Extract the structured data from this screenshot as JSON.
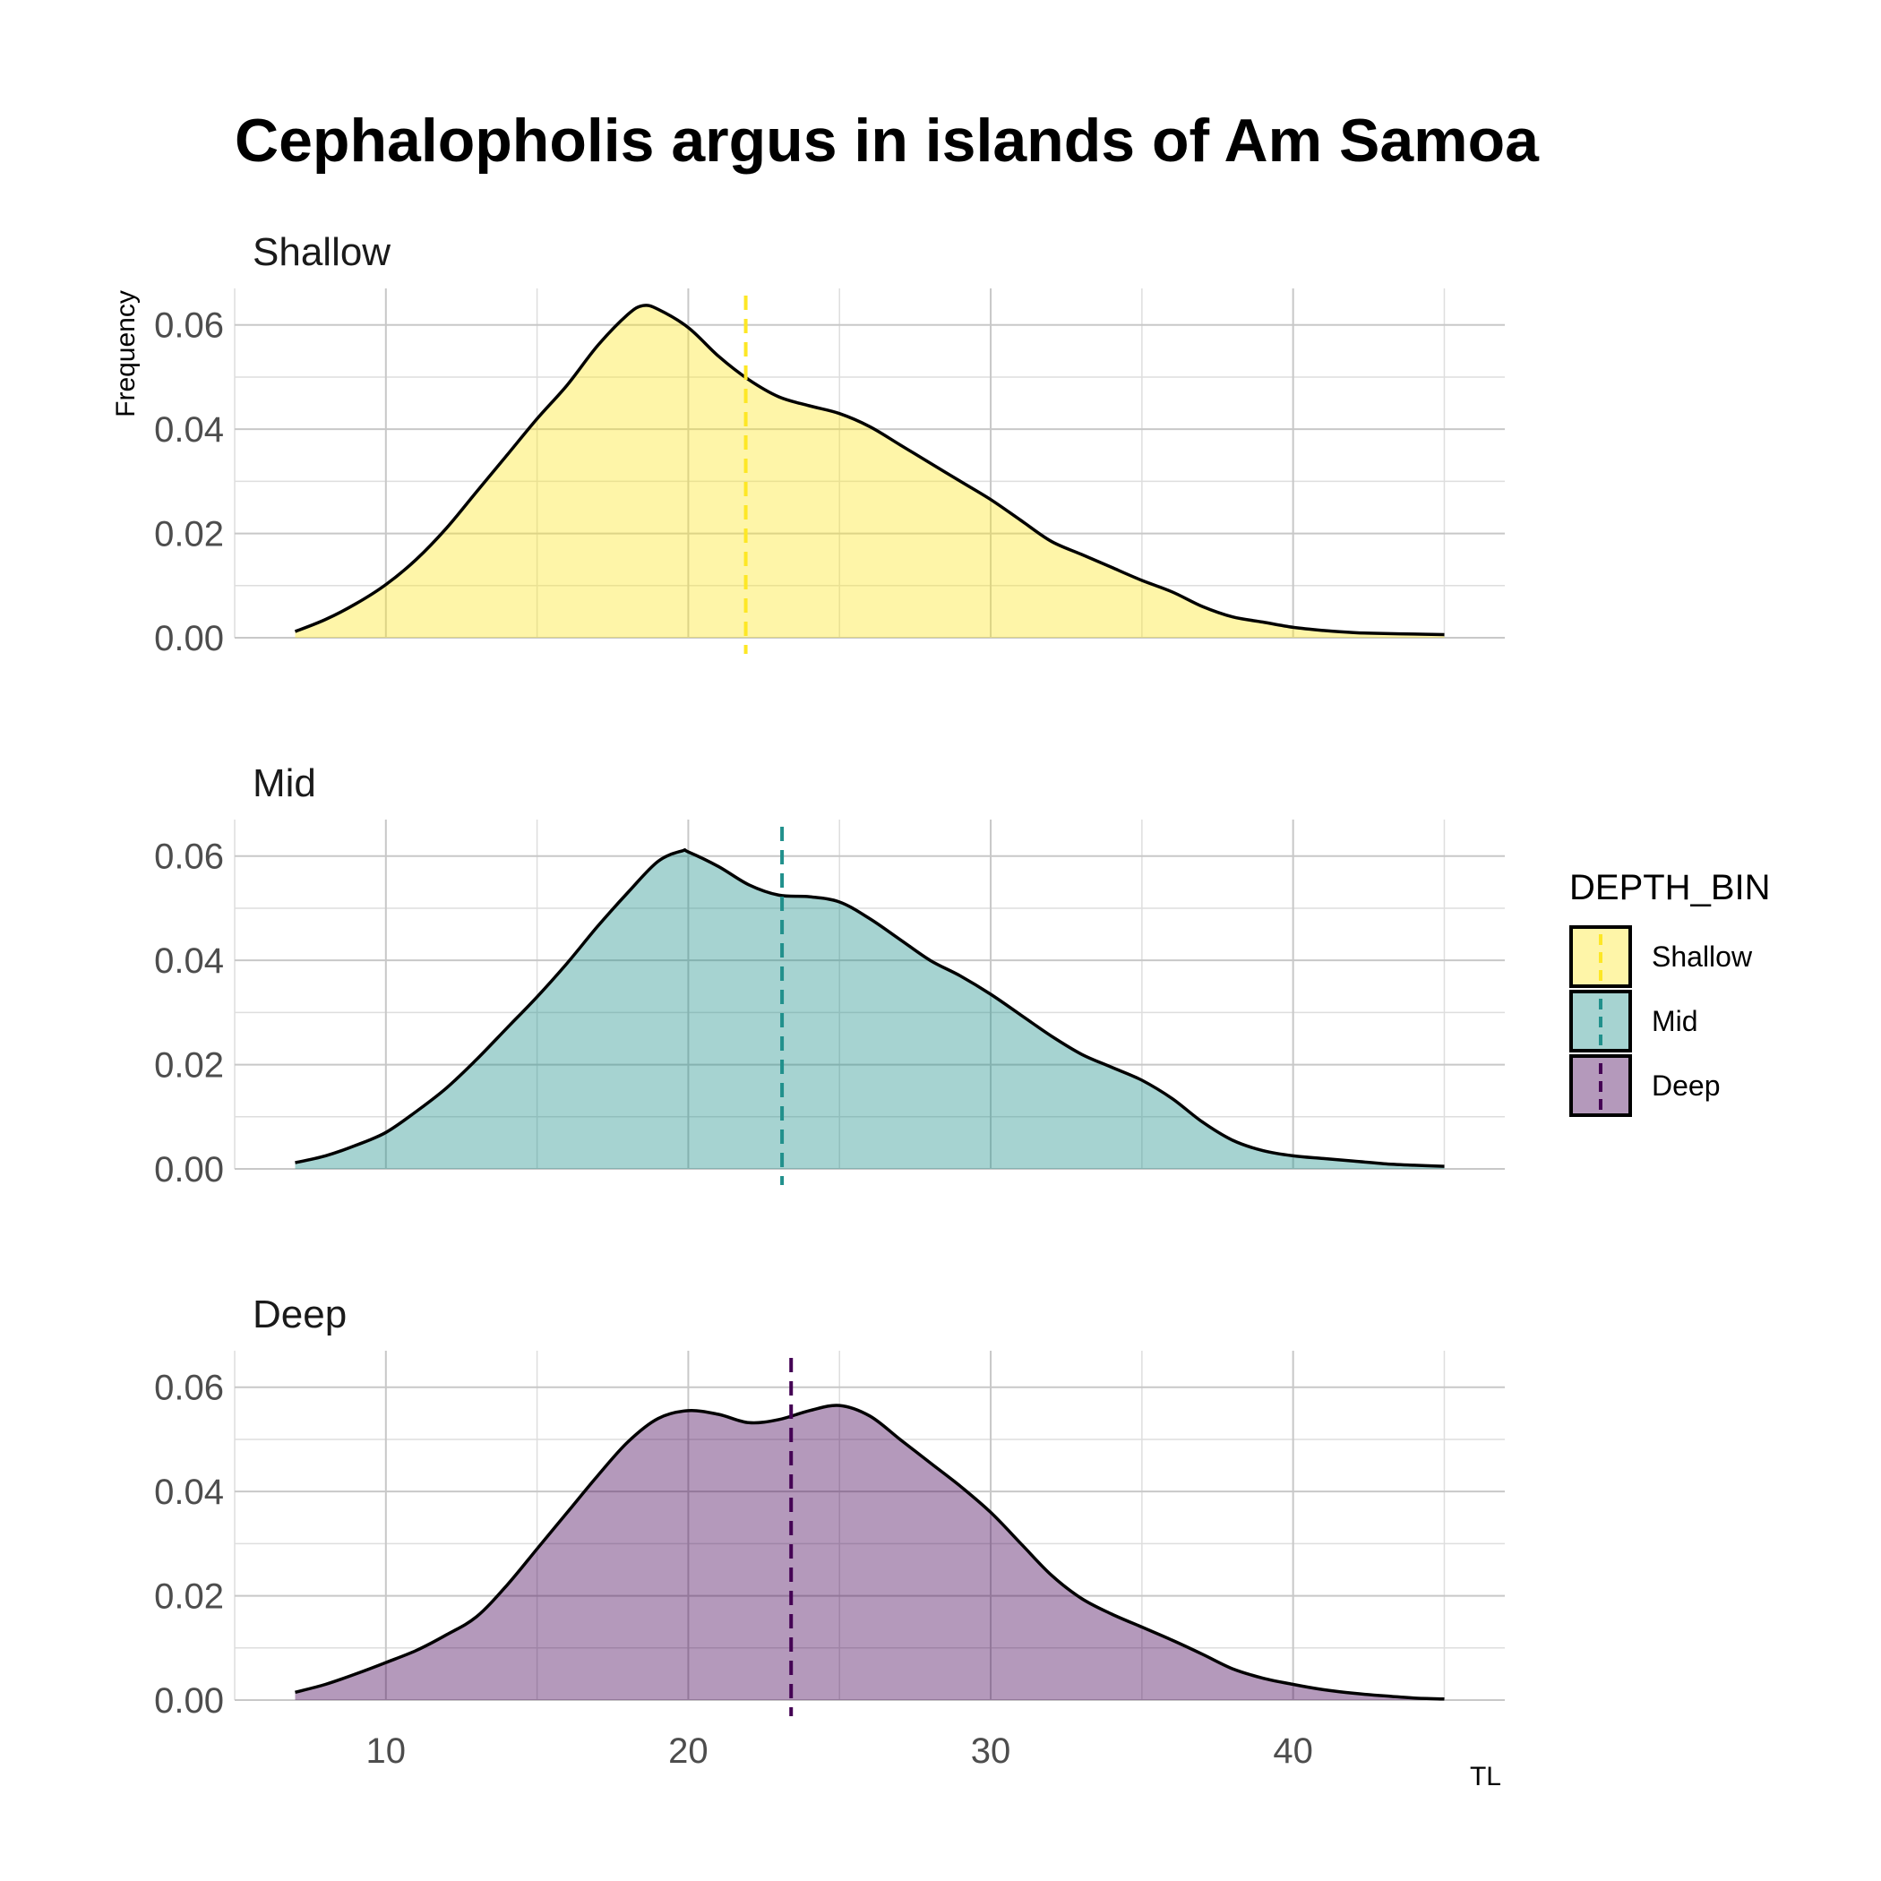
{
  "chart_data": {
    "type": "area",
    "title": "Cephalopholis argus in islands of Am Samoa",
    "xlabel": "TL",
    "ylabel": "Frequency",
    "xlim": [
      5,
      47
    ],
    "ylim": [
      0,
      0.067
    ],
    "x_ticks": [
      10,
      20,
      30,
      40
    ],
    "y_ticks": [
      0.0,
      0.02,
      0.04,
      0.06
    ],
    "x_tick_labels": [
      "10",
      "20",
      "30",
      "40"
    ],
    "y_tick_labels": [
      "0.00",
      "0.02",
      "0.04",
      "0.06"
    ],
    "grid": true,
    "legend": {
      "title": "DEPTH_BIN",
      "position": "right",
      "items": [
        "Shallow",
        "Mid",
        "Deep"
      ]
    },
    "series": [
      {
        "name": "Shallow",
        "facet_label": "Shallow",
        "color": "#FDE725",
        "mean": 21.9,
        "x": [
          7,
          8,
          9,
          10,
          11,
          12,
          13,
          14,
          15,
          16,
          17,
          18,
          18.5,
          19,
          20,
          21,
          22,
          23,
          24,
          25,
          26,
          27,
          28,
          29,
          30,
          31,
          32,
          33,
          34,
          35,
          36,
          37,
          38,
          39,
          40,
          41,
          42,
          43,
          44,
          45
        ],
        "y": [
          0.0012,
          0.0035,
          0.0065,
          0.0102,
          0.015,
          0.021,
          0.028,
          0.035,
          0.042,
          0.0485,
          0.056,
          0.062,
          0.0637,
          0.063,
          0.0595,
          0.054,
          0.0495,
          0.0462,
          0.0445,
          0.043,
          0.0405,
          0.037,
          0.0335,
          0.03,
          0.0265,
          0.0225,
          0.0185,
          0.016,
          0.0135,
          0.011,
          0.0088,
          0.006,
          0.004,
          0.003,
          0.002,
          0.0014,
          0.001,
          0.0008,
          0.0007,
          0.0006
        ]
      },
      {
        "name": "Mid",
        "facet_label": "Mid",
        "color": "#21908C",
        "mean": 23.1,
        "x": [
          7,
          8,
          9,
          10,
          11,
          12,
          13,
          14,
          15,
          16,
          17,
          18,
          19,
          19.8,
          20,
          21,
          22,
          23,
          24,
          25,
          26,
          27,
          28,
          29,
          30,
          31,
          32,
          33,
          34,
          35,
          36,
          37,
          38,
          39,
          40,
          41,
          42,
          43,
          44,
          45
        ],
        "y": [
          0.0012,
          0.0025,
          0.0045,
          0.007,
          0.011,
          0.0155,
          0.021,
          0.027,
          0.033,
          0.0395,
          0.0465,
          0.053,
          0.059,
          0.061,
          0.0608,
          0.058,
          0.0545,
          0.0525,
          0.0522,
          0.0512,
          0.048,
          0.044,
          0.04,
          0.037,
          0.0335,
          0.0295,
          0.0255,
          0.022,
          0.0195,
          0.017,
          0.0135,
          0.009,
          0.0055,
          0.0035,
          0.0025,
          0.002,
          0.0015,
          0.001,
          0.0007,
          0.0005
        ]
      },
      {
        "name": "Deep",
        "facet_label": "Deep",
        "color": "#440154",
        "mean": 23.4,
        "x": [
          7,
          8,
          9,
          10,
          11,
          12,
          13,
          14,
          15,
          16,
          17,
          18,
          19,
          20,
          21,
          22,
          23,
          24,
          25,
          26,
          27,
          28,
          29,
          30,
          31,
          32,
          33,
          34,
          35,
          36,
          37,
          38,
          39,
          40,
          41,
          42,
          43,
          44,
          45
        ],
        "y": [
          0.0015,
          0.003,
          0.005,
          0.0072,
          0.0095,
          0.0125,
          0.016,
          0.022,
          0.029,
          0.036,
          0.043,
          0.0495,
          0.054,
          0.0555,
          0.0548,
          0.0532,
          0.0538,
          0.0555,
          0.0565,
          0.0545,
          0.05,
          0.0455,
          0.041,
          0.036,
          0.03,
          0.024,
          0.0195,
          0.0165,
          0.014,
          0.0115,
          0.0088,
          0.006,
          0.0042,
          0.003,
          0.002,
          0.0013,
          0.0008,
          0.0004,
          0.0002
        ]
      }
    ]
  }
}
